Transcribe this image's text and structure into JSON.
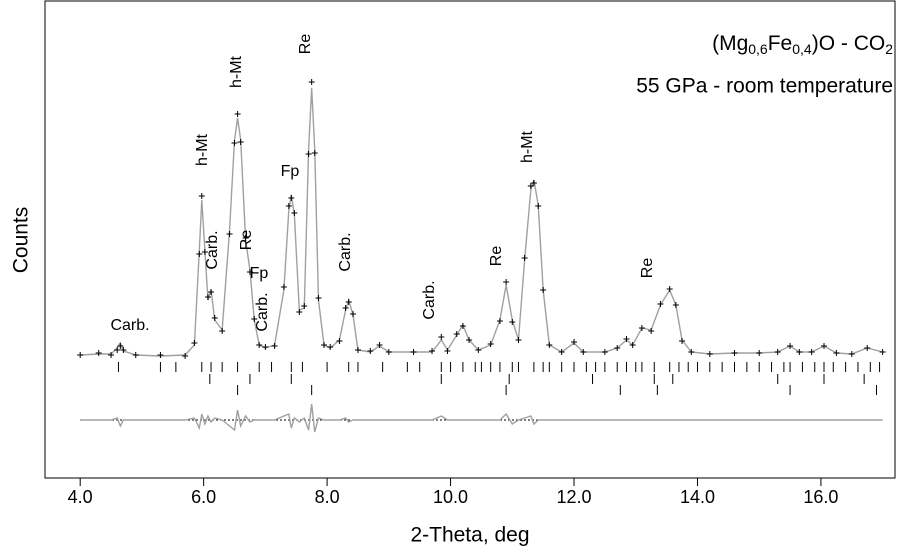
{
  "chart_data": {
    "type": "line",
    "title": [
      "(Mg",
      "0,6",
      "Fe",
      "0,4",
      ")O - CO",
      "2"
    ],
    "subtitle": "55 GPa - room temperature",
    "xlabel": "2-Theta, deg",
    "ylabel": "Counts",
    "xlim": [
      3.43,
      17.2
    ],
    "ylim": [
      0,
      478
    ],
    "xticks": [
      {
        "value": 4,
        "label": "4.0"
      },
      {
        "value": 6,
        "label": "6.0"
      },
      {
        "value": 8,
        "label": "8.0"
      },
      {
        "value": 10,
        "label": "10.0"
      },
      {
        "value": 12,
        "label": "12.0"
      },
      {
        "value": 14,
        "label": "14.0"
      },
      {
        "value": 16,
        "label": "16.0"
      }
    ],
    "x": [
      4.0,
      4.3,
      4.5,
      4.6,
      4.65,
      4.7,
      4.9,
      5.3,
      5.7,
      5.85,
      5.93,
      5.97,
      6.02,
      6.07,
      6.12,
      6.18,
      6.3,
      6.42,
      6.5,
      6.55,
      6.6,
      6.68,
      6.75,
      6.82,
      6.9,
      7.0,
      7.15,
      7.3,
      7.38,
      7.42,
      7.47,
      7.55,
      7.63,
      7.7,
      7.75,
      7.8,
      7.86,
      7.95,
      8.05,
      8.2,
      8.3,
      8.35,
      8.42,
      8.5,
      8.7,
      8.85,
      9.0,
      9.4,
      9.7,
      9.85,
      9.95,
      10.1,
      10.2,
      10.3,
      10.45,
      10.65,
      10.8,
      10.9,
      11.0,
      11.1,
      11.2,
      11.3,
      11.35,
      11.42,
      11.5,
      11.6,
      11.8,
      12.0,
      12.15,
      12.5,
      12.7,
      12.85,
      12.95,
      13.1,
      13.25,
      13.4,
      13.55,
      13.65,
      13.75,
      13.9,
      14.2,
      14.6,
      15.0,
      15.3,
      15.5,
      15.65,
      15.85,
      16.05,
      16.25,
      16.5,
      16.75,
      17.0
    ],
    "series": [
      {
        "color": "#000000",
        "marker": "cross",
        "values": [
          123,
          125,
          123,
          128,
          132,
          128,
          123,
          123,
          122,
          135,
          224,
          282,
          226,
          181,
          186,
          160,
          147,
          244,
          335,
          364,
          336,
          240,
          206,
          159,
          133,
          131,
          132,
          191,
          272,
          280,
          265,
          166,
          172,
          324,
          396,
          325,
          180,
          133,
          131,
          137,
          170,
          176,
          164,
          128,
          127,
          133,
          126,
          126,
          127,
          141,
          127,
          144,
          152,
          138,
          128,
          134,
          157,
          196,
          156,
          138,
          220,
          292,
          295,
          272,
          188,
          133,
          126,
          136,
          126,
          126,
          130,
          139,
          133,
          150,
          147,
          174,
          189,
          173,
          137,
          126,
          124,
          125,
          125,
          126,
          132,
          126,
          126,
          132,
          125,
          124,
          130,
          126
        ]
      },
      {
        "color": "#a0a0a0",
        "marker": "line",
        "values": [
          123,
          124,
          124,
          130,
          135,
          127,
          123,
          122,
          123,
          133,
          228,
          278,
          228,
          178,
          188,
          158,
          148,
          248,
          338,
          360,
          338,
          238,
          208,
          158,
          133,
          130,
          133,
          188,
          268,
          283,
          263,
          168,
          170,
          328,
          390,
          328,
          178,
          133,
          130,
          138,
          168,
          178,
          163,
          128,
          126,
          132,
          126,
          126,
          126,
          138,
          128,
          143,
          153,
          138,
          128,
          133,
          158,
          193,
          158,
          138,
          218,
          288,
          298,
          273,
          188,
          133,
          126,
          135,
          126,
          126,
          130,
          138,
          133,
          150,
          148,
          173,
          188,
          173,
          138,
          126,
          124,
          125,
          125,
          126,
          132,
          126,
          126,
          132,
          125,
          124,
          130,
          126
        ]
      },
      {
        "color": "#a0a0a0",
        "marker": "line",
        "values": [
          58,
          58,
          58,
          60,
          52,
          58,
          58,
          58,
          58,
          60,
          50,
          64,
          54,
          62,
          56,
          60,
          58,
          52,
          48,
          68,
          52,
          62,
          56,
          58,
          58,
          58,
          58,
          62,
          64,
          50,
          60,
          56,
          60,
          48,
          74,
          46,
          60,
          58,
          58,
          58,
          60,
          56,
          58,
          58,
          58,
          58,
          58,
          58,
          58,
          62,
          58,
          58,
          58,
          58,
          58,
          58,
          58,
          64,
          54,
          58,
          60,
          62,
          54,
          58,
          58,
          58,
          58,
          58,
          58,
          58,
          58,
          58,
          58,
          58,
          58,
          58,
          58,
          58,
          58,
          58,
          58,
          58,
          58,
          58,
          58,
          58,
          58,
          58,
          58,
          58,
          58,
          58
        ]
      }
    ],
    "reflections": [
      [
        4.62,
        5.3,
        5.55,
        5.97,
        6.12,
        6.3,
        6.55,
        6.9,
        7.1,
        7.42,
        7.6,
        8.0,
        8.35,
        8.5,
        8.9,
        9.3,
        9.5,
        9.85,
        10.0,
        10.2,
        10.4,
        10.5,
        10.65,
        10.8,
        11.0,
        11.1,
        11.35,
        11.5,
        11.6,
        11.8,
        12.0,
        12.2,
        12.35,
        12.5,
        12.7,
        12.85,
        13.0,
        13.1,
        13.3,
        13.55,
        13.7,
        13.85,
        14.0,
        14.2,
        14.4,
        14.6,
        14.8,
        15.0,
        15.2,
        15.4,
        15.5,
        15.7,
        15.9,
        16.05,
        16.2,
        16.4,
        16.6,
        16.8,
        16.95
      ],
      [
        6.1,
        6.75,
        7.42,
        9.85,
        10.95,
        12.3,
        13.3,
        13.6,
        15.3,
        16.05,
        16.7
      ],
      [
        6.55,
        7.75,
        10.9,
        12.75,
        13.35,
        15.5,
        16.9
      ]
    ],
    "reflection_color": "#000000",
    "annotations": [
      "Carb.",
      "h-Mt",
      "Carb.",
      "Re",
      "Fp",
      "Carb.",
      "h-Mt",
      "Fp",
      "Re",
      "Carb.",
      "Carb.",
      "Re",
      "h-Mt",
      "Re"
    ]
  }
}
